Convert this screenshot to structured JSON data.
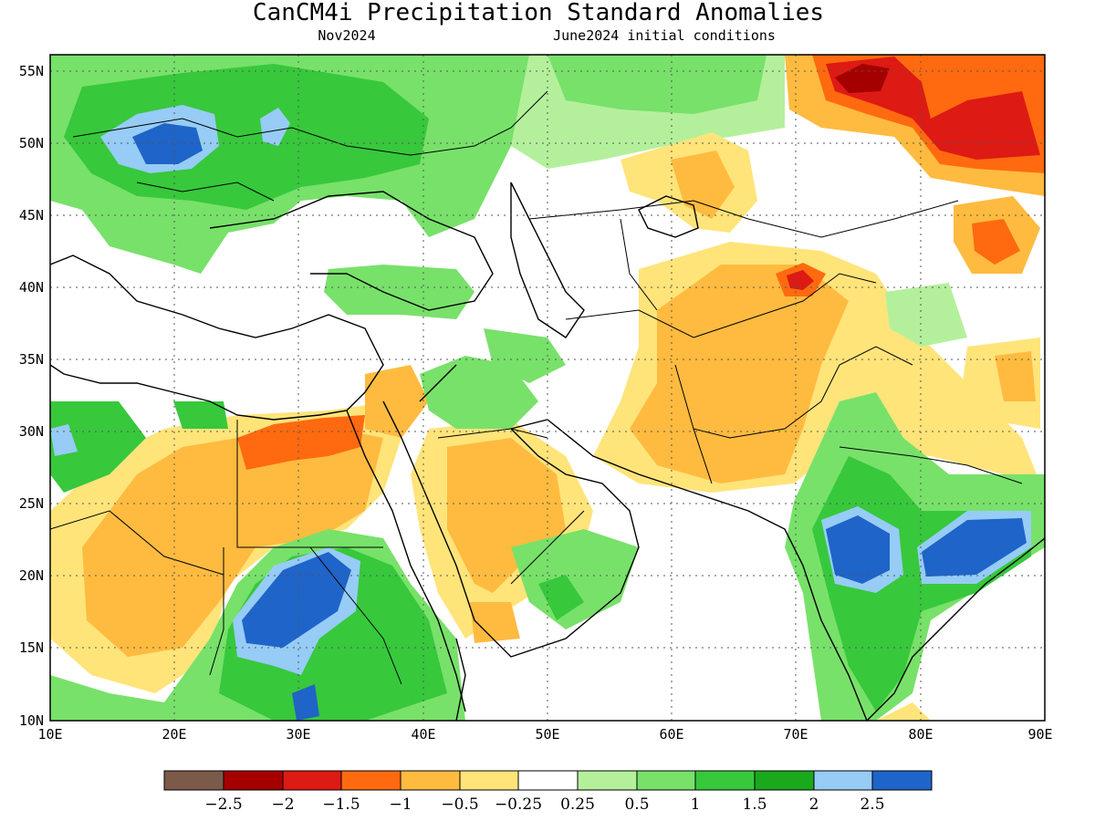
{
  "title": "CanCM4i Precipitation Standard Anomalies",
  "subtitle_left": "Nov2024",
  "subtitle_right": "June2024 initial conditions",
  "lat_ticks": [
    "55N",
    "50N",
    "45N",
    "40N",
    "35N",
    "30N",
    "25N",
    "20N",
    "15N",
    "10N"
  ],
  "lon_ticks": [
    "10E",
    "20E",
    "30E",
    "40E",
    "50E",
    "60E",
    "70E",
    "80E",
    "90E"
  ],
  "colorbar": {
    "colors": [
      "#7b5a4a",
      "#a50000",
      "#dd1a14",
      "#ff6a10",
      "#ffbb40",
      "#ffe47a",
      "#ffffff",
      "#b4f09c",
      "#78e16a",
      "#37c83c",
      "#1aa81c",
      "#96ccf5",
      "#1f64c8"
    ],
    "labels": [
      "−2.5",
      "−2",
      "−1.5",
      "−1",
      "−0.5",
      "−0.25",
      "0.25",
      "0.5",
      "1",
      "1.5",
      "2",
      "2.5"
    ]
  },
  "map": {
    "lon_range": [
      10,
      90
    ],
    "lat_range": [
      10,
      56
    ],
    "grid": true,
    "regions": [
      {
        "name": "europe-wet",
        "category": "wet_1"
      },
      {
        "name": "pannonian-wet-core",
        "category": "wet_2_5"
      },
      {
        "name": "ukraine-wet",
        "category": "wet_1_5"
      },
      {
        "name": "siberia-dry",
        "category": "dry_1_5"
      },
      {
        "name": "siberia-dry-core",
        "category": "dry_2"
      },
      {
        "name": "afghanistan-dry",
        "category": "dry_0_5"
      },
      {
        "name": "arabia-dry",
        "category": "dry_0_5"
      },
      {
        "name": "sahara-dry",
        "category": "dry_0_5"
      },
      {
        "name": "egypt-dry-core",
        "category": "dry_1"
      },
      {
        "name": "sudan-wet",
        "category": "wet_2_5"
      },
      {
        "name": "ethiopia-wet",
        "category": "wet_1_5"
      },
      {
        "name": "india-wet-west",
        "category": "wet_2_5"
      },
      {
        "name": "india-wet-east",
        "category": "wet_2_5"
      },
      {
        "name": "tibet-dry",
        "category": "dry_0_5"
      }
    ]
  }
}
